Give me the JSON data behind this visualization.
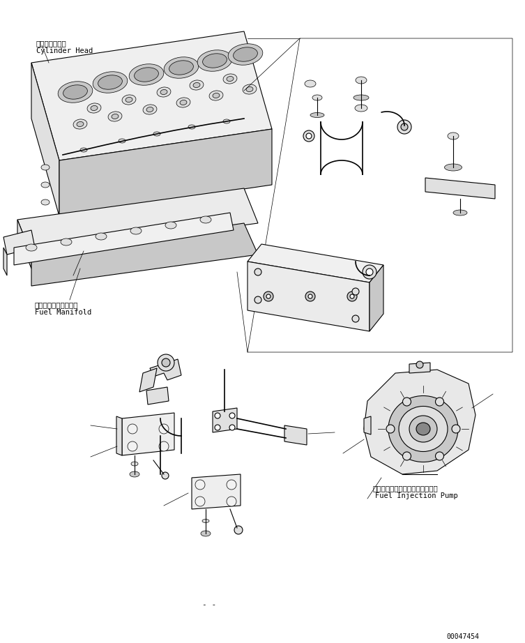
{
  "fig_width": 7.53,
  "fig_height": 9.22,
  "dpi": 100,
  "background_color": "#ffffff",
  "labels": {
    "cylinder_head_jp": "シリンダヘッド",
    "cylinder_head_en": "Cylinder Head",
    "fuel_manifold_jp": "フェエルマニホールド",
    "fuel_manifold_en": "Fuel Manifold",
    "fuel_injection_pump_jp": "フェエルインジェクションポンプ",
    "fuel_injection_pump_en": "Fuel Injection Pump",
    "part_number": "00047454",
    "dash": "- -"
  },
  "lw": {
    "thin": 0.5,
    "med": 0.8,
    "thick": 1.2
  },
  "colors": {
    "line": "#000000",
    "bg": "#ffffff",
    "fill_light": "#f2f2f2",
    "fill_mid": "#e0e0e0",
    "fill_dark": "#c8c8c8",
    "fill_darkest": "#b0b0b0"
  }
}
